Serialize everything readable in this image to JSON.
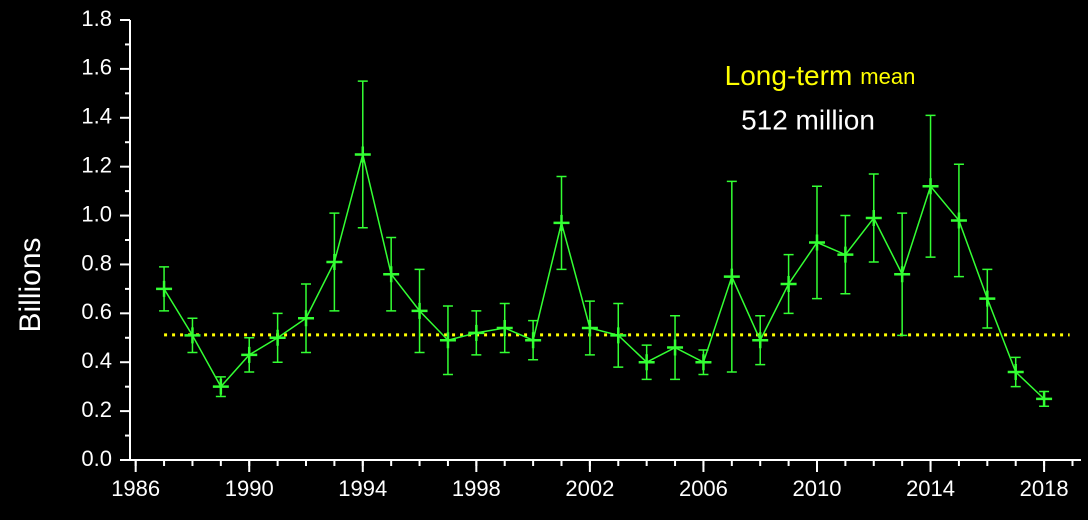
{
  "chart_data": {
    "type": "line",
    "ylabel": "Billions",
    "x": [
      1987,
      1988,
      1989,
      1990,
      1991,
      1992,
      1993,
      1994,
      1995,
      1996,
      1997,
      1998,
      1999,
      2000,
      2001,
      2002,
      2003,
      2004,
      2005,
      2006,
      2007,
      2008,
      2009,
      2010,
      2011,
      2012,
      2013,
      2014,
      2015,
      2016,
      2017,
      2018
    ],
    "series": [
      {
        "color": "#33ff33",
        "values": [
          0.7,
          0.51,
          0.3,
          0.43,
          0.5,
          0.58,
          0.81,
          1.25,
          0.76,
          0.61,
          0.49,
          0.52,
          0.54,
          0.49,
          0.97,
          0.54,
          0.51,
          0.4,
          0.46,
          0.4,
          0.75,
          0.49,
          0.72,
          0.89,
          0.84,
          0.99,
          0.76,
          1.12,
          0.98,
          0.66,
          0.36,
          0.25
        ],
        "errors": [
          0.09,
          0.07,
          0.04,
          0.07,
          0.1,
          0.14,
          0.2,
          0.3,
          0.15,
          0.17,
          0.14,
          0.09,
          0.1,
          0.08,
          0.19,
          0.11,
          0.13,
          0.07,
          0.13,
          0.05,
          0.39,
          0.1,
          0.12,
          0.23,
          0.16,
          0.18,
          0.25,
          0.29,
          0.23,
          0.12,
          0.06,
          0.03
        ]
      }
    ],
    "annotation": {
      "text": [
        "Long-term",
        "mean"
      ],
      "value": 0.512,
      "label": "512 million",
      "color": "#ffff00"
    },
    "xlim": [
      1985.8,
      2019.3
    ],
    "xticks": [
      1986,
      1990,
      1994,
      1998,
      2002,
      2006,
      2010,
      2014,
      2018
    ],
    "ylim": [
      0,
      1.8
    ],
    "yticks": [
      {
        "value": 0,
        "label": "0.0"
      },
      0.2,
      0.4,
      0.6,
      0.8,
      {
        "value": 1,
        "label": "1.0"
      },
      1.2,
      1.4,
      1.6,
      1.8
    ]
  }
}
